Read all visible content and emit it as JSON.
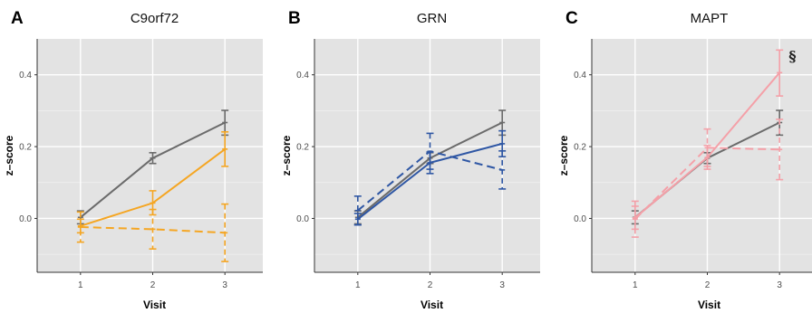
{
  "chart_data": [
    {
      "type": "line",
      "panel_label": "A",
      "title": "C9orf72",
      "xlabel": "Visit",
      "ylabel": "z–score",
      "x": [
        1,
        2,
        3
      ],
      "x_tick_labels": [
        "1",
        "2",
        "3"
      ],
      "y_ticks": [
        0.0,
        0.2,
        0.4
      ],
      "y_tick_labels": [
        "0.0",
        "0.2",
        "0.4"
      ],
      "xlim": [
        0.4,
        3.6
      ],
      "ylim": [
        -0.15,
        0.5
      ],
      "grid": true,
      "series": [
        {
          "color": "#6b6b6b",
          "style": "solid",
          "values": [
            0.003,
            0.168,
            0.267
          ],
          "lower": [
            -0.015,
            0.153,
            0.232
          ],
          "upper": [
            0.021,
            0.183,
            0.301
          ]
        },
        {
          "color": "#f5a623",
          "style": "solid",
          "values": [
            -0.021,
            0.043,
            0.193
          ],
          "lower": [
            -0.04,
            0.01,
            0.145
          ],
          "upper": [
            -0.002,
            0.077,
            0.241
          ]
        },
        {
          "color": "#f5a623",
          "style": "dashed",
          "values": [
            -0.024,
            -0.03,
            -0.04
          ],
          "lower": [
            -0.066,
            -0.085,
            -0.12
          ],
          "upper": [
            0.018,
            0.025,
            0.04
          ]
        }
      ],
      "annotation": ""
    },
    {
      "type": "line",
      "panel_label": "B",
      "title": "GRN",
      "xlabel": "Visit",
      "ylabel": "z–score",
      "x": [
        1,
        2,
        3
      ],
      "x_tick_labels": [
        "1",
        "2",
        "3"
      ],
      "y_ticks": [
        0.0,
        0.2,
        0.4
      ],
      "y_tick_labels": [
        "0.0",
        "0.2",
        "0.4"
      ],
      "xlim": [
        0.4,
        3.6
      ],
      "ylim": [
        -0.15,
        0.5
      ],
      "grid": true,
      "series": [
        {
          "color": "#6b6b6b",
          "style": "solid",
          "values": [
            0.003,
            0.168,
            0.267
          ],
          "lower": [
            -0.015,
            0.153,
            0.232
          ],
          "upper": [
            0.021,
            0.183,
            0.301
          ]
        },
        {
          "color": "#2f57a4",
          "style": "solid",
          "values": [
            -0.002,
            0.155,
            0.208
          ],
          "lower": [
            -0.018,
            0.125,
            0.172
          ],
          "upper": [
            0.014,
            0.185,
            0.244
          ]
        },
        {
          "color": "#2f57a4",
          "style": "dashed",
          "values": [
            0.022,
            0.187,
            0.135
          ],
          "lower": [
            -0.018,
            0.137,
            0.082
          ],
          "upper": [
            0.062,
            0.237,
            0.188
          ]
        }
      ],
      "annotation": ""
    },
    {
      "type": "line",
      "panel_label": "C",
      "title": "MAPT",
      "xlabel": "Visit",
      "ylabel": "z–score",
      "x": [
        1,
        2,
        3
      ],
      "x_tick_labels": [
        "1",
        "2",
        "3"
      ],
      "y_ticks": [
        0.0,
        0.2,
        0.4
      ],
      "y_tick_labels": [
        "0.0",
        "0.2",
        "0.4"
      ],
      "xlim": [
        0.4,
        3.6
      ],
      "ylim": [
        -0.15,
        0.5
      ],
      "grid": true,
      "series": [
        {
          "color": "#6b6b6b",
          "style": "solid",
          "values": [
            0.003,
            0.168,
            0.267
          ],
          "lower": [
            -0.015,
            0.153,
            0.232
          ],
          "upper": [
            0.021,
            0.183,
            0.301
          ]
        },
        {
          "color": "#f4a0a8",
          "style": "solid",
          "values": [
            0.002,
            0.17,
            0.406
          ],
          "lower": [
            -0.03,
            0.137,
            0.341
          ],
          "upper": [
            0.034,
            0.203,
            0.469
          ]
        },
        {
          "color": "#f4a0a8",
          "style": "dashed",
          "values": [
            -0.002,
            0.197,
            0.192
          ],
          "lower": [
            -0.052,
            0.145,
            0.108
          ],
          "upper": [
            0.048,
            0.249,
            0.276
          ]
        }
      ],
      "annotation": "§"
    }
  ]
}
